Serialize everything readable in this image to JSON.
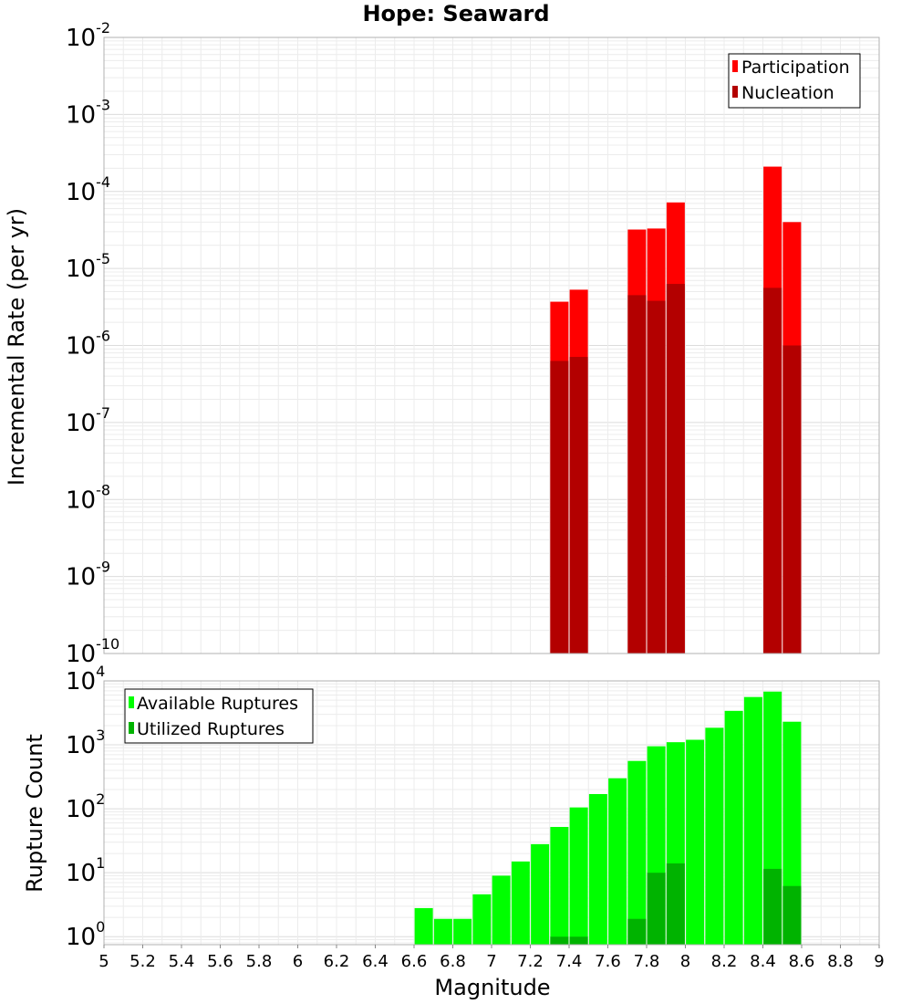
{
  "chart_data": [
    {
      "type": "bar",
      "title": "Hope: Seaward",
      "xlabel": "Magnitude",
      "ylabel": "Incremental Rate (per yr)",
      "yscale": "log",
      "ylim": [
        1e-10,
        0.01
      ],
      "xlim": [
        5,
        9
      ],
      "ytick_exponents": [
        "-10",
        "-9",
        "-8",
        "-7",
        "-6",
        "-5",
        "-4",
        "-3",
        "-2"
      ],
      "ytick_base": "10",
      "legend_position": "top-right",
      "series": [
        {
          "name": "Participation",
          "color": "#ff0000",
          "x": [
            7.35,
            7.45,
            7.75,
            7.85,
            7.95,
            8.45,
            8.55
          ],
          "values": [
            3.7e-06,
            5.3e-06,
            3.2e-05,
            3.3e-05,
            7.2e-05,
            0.00021,
            4e-05
          ]
        },
        {
          "name": "Nucleation",
          "color": "#b30000",
          "x": [
            7.35,
            7.45,
            7.75,
            7.85,
            7.95,
            8.45,
            8.55
          ],
          "values": [
            6.3e-07,
            7.1e-07,
            4.5e-06,
            3.8e-06,
            6.3e-06,
            5.6e-06,
            1e-06
          ]
        }
      ]
    },
    {
      "type": "bar",
      "title": "",
      "xlabel": "Magnitude",
      "ylabel": "Rupture Count",
      "yscale": "log",
      "ylim": [
        0.75,
        10000
      ],
      "xlim": [
        5,
        9
      ],
      "ytick_exponents": [
        "0",
        "1",
        "2",
        "3",
        "4"
      ],
      "ytick_base": "10",
      "xticks": [
        "5",
        "5.2",
        "5.4",
        "5.6",
        "5.8",
        "6",
        "6.2",
        "6.4",
        "6.6",
        "6.8",
        "7",
        "7.2",
        "7.4",
        "7.6",
        "7.8",
        "8",
        "8.2",
        "8.4",
        "8.6",
        "8.8",
        "9"
      ],
      "legend_position": "top-left",
      "series": [
        {
          "name": "Available Ruptures",
          "color": "#00ff00",
          "x": [
            6.65,
            6.75,
            6.85,
            6.95,
            7.05,
            7.15,
            7.25,
            7.35,
            7.45,
            7.55,
            7.65,
            7.75,
            7.85,
            7.95,
            8.05,
            8.15,
            8.25,
            8.35,
            8.45,
            8.55
          ],
          "values": [
            2.8,
            1.9,
            1.9,
            4.6,
            9,
            15,
            28,
            52,
            105,
            170,
            300,
            560,
            950,
            1100,
            1200,
            1850,
            3400,
            5600,
            6800,
            2300
          ]
        },
        {
          "name": "Utilized Ruptures",
          "color": "#00b300",
          "x": [
            7.35,
            7.45,
            7.75,
            7.85,
            7.95,
            8.45,
            8.55
          ],
          "values": [
            1,
            1,
            1.9,
            10,
            14,
            11.5,
            6.2
          ]
        }
      ]
    }
  ]
}
